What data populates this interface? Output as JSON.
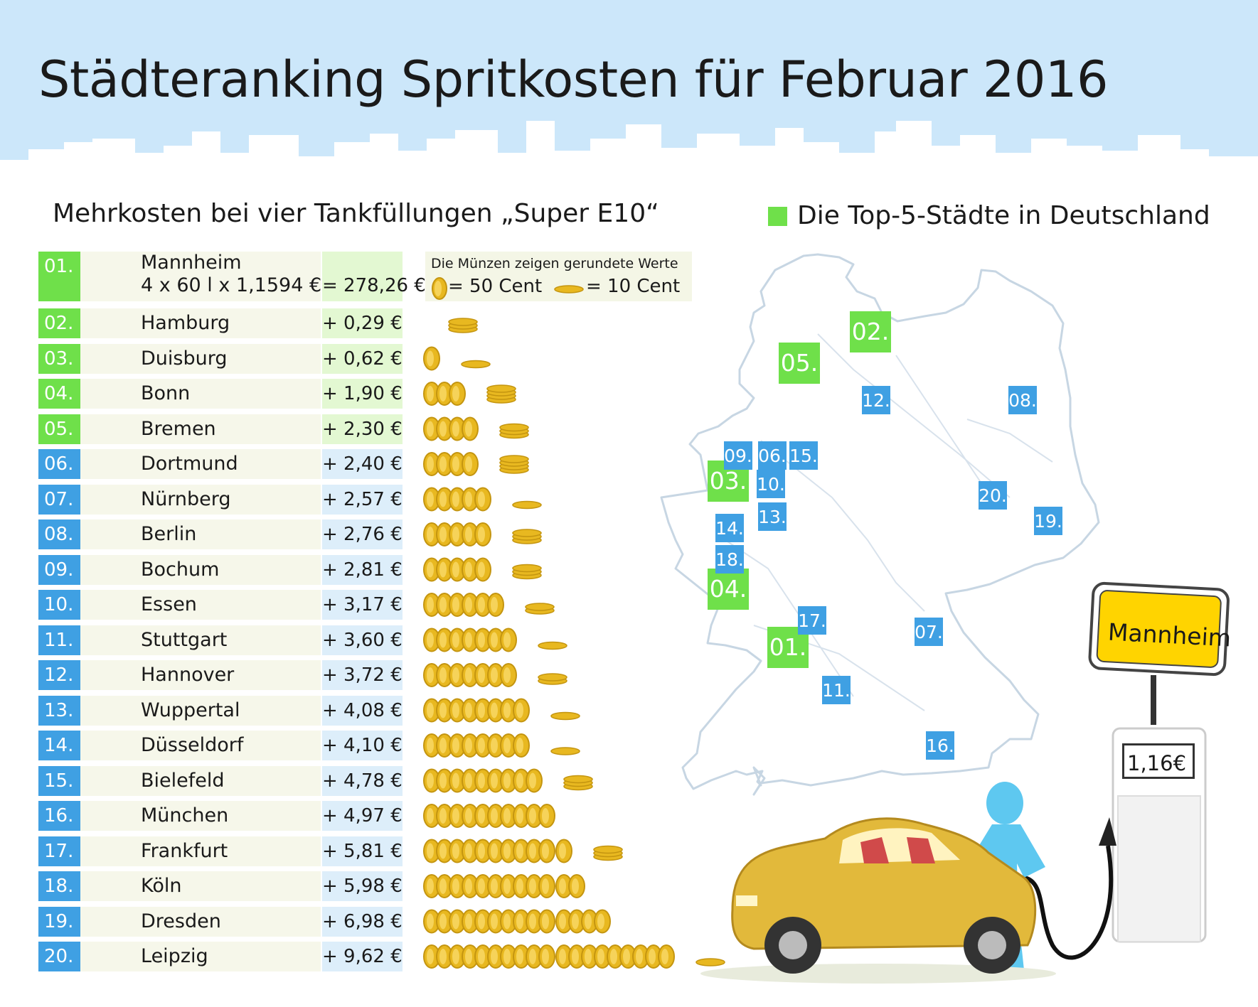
{
  "title": "Städteranking Spritkosten für Februar 2016",
  "subtitle": "Mehrkosten bei vier Tankfüllungen „Super E10“",
  "legend_top5": "Die Top-5-Städte in Deutschland",
  "coin_legend": {
    "note": "Die Münzen zeigen gerundete Werte",
    "fifty": "= 50 Cent",
    "ten": "= 10 Cent"
  },
  "first_place": {
    "rank": "01.",
    "city": "Mannheim",
    "calc": "4 x 60 l x 1,1594 €",
    "total": "= 278,26 €"
  },
  "sign_text": "Mannheim",
  "pump_price": "1,16€",
  "colors": {
    "top5": "#6fe04a",
    "others": "#3fa0e3",
    "coin": "#e8b820",
    "sky": "#cce7fa"
  },
  "chart_data": {
    "type": "table",
    "unit": "€",
    "coin_values_cents": {
      "big": 50,
      "small": 10
    },
    "rows": [
      {
        "rank": "02.",
        "city": "Hamburg",
        "label": "+ 0,29 €",
        "value": 0.29,
        "top5": true
      },
      {
        "rank": "03.",
        "city": "Duisburg",
        "label": "+ 0,62 €",
        "value": 0.62,
        "top5": true
      },
      {
        "rank": "04.",
        "city": "Bonn",
        "label": "+ 1,90 €",
        "value": 1.9,
        "top5": true
      },
      {
        "rank": "05.",
        "city": "Bremen",
        "label": "+ 2,30 €",
        "value": 2.3,
        "top5": true
      },
      {
        "rank": "06.",
        "city": "Dortmund",
        "label": "+ 2,40 €",
        "value": 2.4,
        "top5": false
      },
      {
        "rank": "07.",
        "city": "Nürnberg",
        "label": "+ 2,57 €",
        "value": 2.57,
        "top5": false
      },
      {
        "rank": "08.",
        "city": "Berlin",
        "label": "+ 2,76 €",
        "value": 2.76,
        "top5": false
      },
      {
        "rank": "09.",
        "city": "Bochum",
        "label": "+ 2,81 €",
        "value": 2.81,
        "top5": false
      },
      {
        "rank": "10.",
        "city": "Essen",
        "label": "+ 3,17 €",
        "value": 3.17,
        "top5": false
      },
      {
        "rank": "11.",
        "city": "Stuttgart",
        "label": "+ 3,60 €",
        "value": 3.6,
        "top5": false
      },
      {
        "rank": "12.",
        "city": "Hannover",
        "label": "+ 3,72 €",
        "value": 3.72,
        "top5": false
      },
      {
        "rank": "13.",
        "city": "Wuppertal",
        "label": "+ 4,08 €",
        "value": 4.08,
        "top5": false
      },
      {
        "rank": "14.",
        "city": "Düsseldorf",
        "label": "+ 4,10 €",
        "value": 4.1,
        "top5": false
      },
      {
        "rank": "15.",
        "city": "Bielefeld",
        "label": "+ 4,78 €",
        "value": 4.78,
        "top5": false
      },
      {
        "rank": "16.",
        "city": "München",
        "label": "+ 4,97 €",
        "value": 4.97,
        "top5": false
      },
      {
        "rank": "17.",
        "city": "Frankfurt",
        "label": "+ 5,81 €",
        "value": 5.81,
        "top5": false
      },
      {
        "rank": "18.",
        "city": "Köln",
        "label": "+ 5,98 €",
        "value": 5.98,
        "top5": false
      },
      {
        "rank": "19.",
        "city": "Dresden",
        "label": "+ 6,98 €",
        "value": 6.98,
        "top5": false
      },
      {
        "rank": "20.",
        "city": "Leipzig",
        "label": "+ 9,62 €",
        "value": 9.62,
        "top5": false
      }
    ]
  },
  "map_markers": [
    {
      "label": "01.",
      "top5": true
    },
    {
      "label": "02.",
      "top5": true
    },
    {
      "label": "03.",
      "top5": true
    },
    {
      "label": "04.",
      "top5": true
    },
    {
      "label": "05.",
      "top5": true
    },
    {
      "label": "06.",
      "top5": false
    },
    {
      "label": "07.",
      "top5": false
    },
    {
      "label": "08.",
      "top5": false
    },
    {
      "label": "09.",
      "top5": false
    },
    {
      "label": "10.",
      "top5": false
    },
    {
      "label": "11.",
      "top5": false
    },
    {
      "label": "12.",
      "top5": false
    },
    {
      "label": "13.",
      "top5": false
    },
    {
      "label": "14.",
      "top5": false
    },
    {
      "label": "15.",
      "top5": false
    },
    {
      "label": "16.",
      "top5": false
    },
    {
      "label": "17.",
      "top5": false
    },
    {
      "label": "18.",
      "top5": false
    },
    {
      "label": "19.",
      "top5": false
    },
    {
      "label": "20.",
      "top5": false
    }
  ]
}
